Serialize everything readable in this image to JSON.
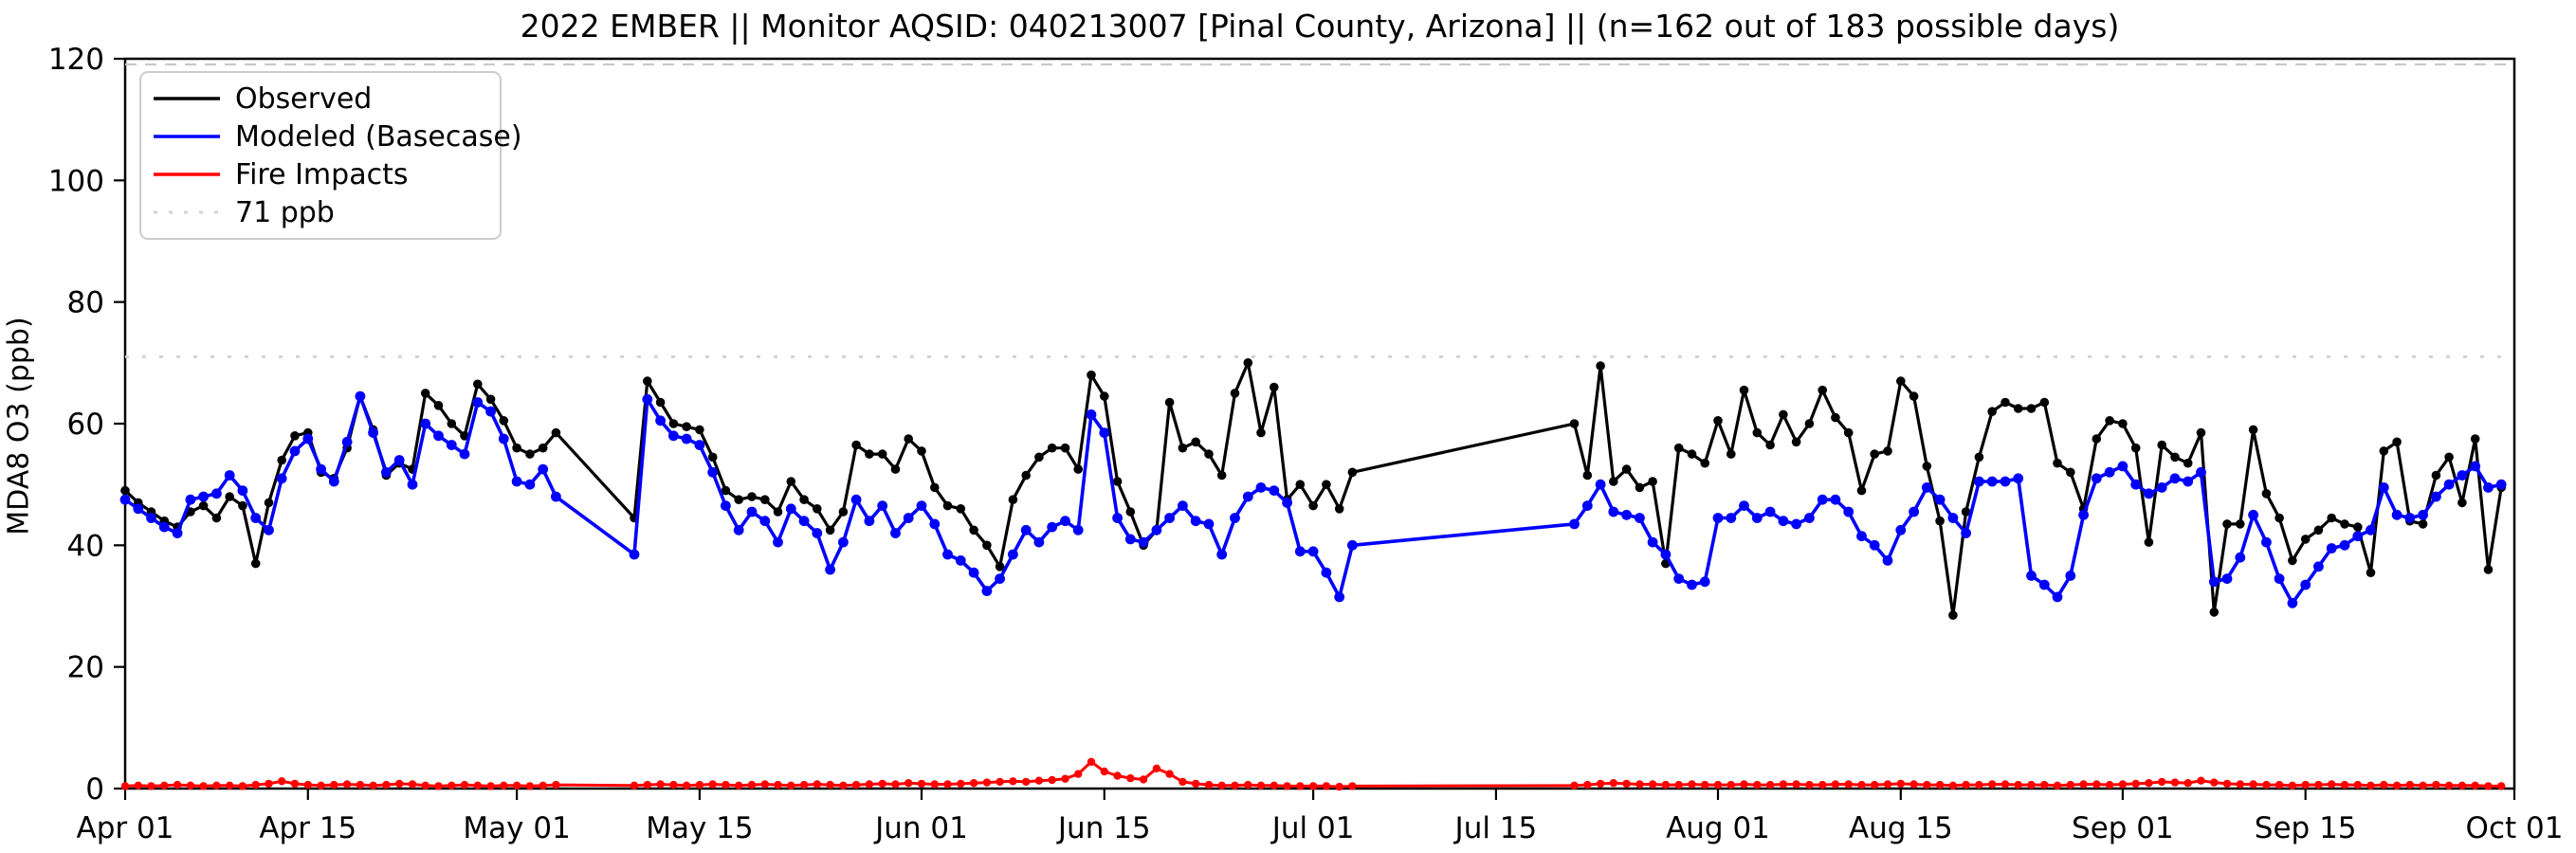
{
  "chart_data": {
    "type": "line",
    "title": "2022 EMBER || Monitor AQSID: 040213007 [Pinal County, Arizona] || (n=162 out of 183 possible days)",
    "ylabel": "MDA8 O3 (ppb)",
    "xlabel": "",
    "ylim": [
      0,
      120
    ],
    "y_ticks": [
      0,
      20,
      40,
      60,
      80,
      100,
      120
    ],
    "x_ticks": {
      "days": [
        0,
        14,
        30,
        44,
        61,
        75,
        91,
        105,
        122,
        136,
        153,
        167,
        183
      ],
      "labels": [
        "Apr 01",
        "Apr 15",
        "May 01",
        "May 15",
        "Jun 01",
        "Jun 15",
        "Jul 01",
        "Jul 15",
        "Aug 01",
        "Aug 15",
        "Sep 01",
        "Sep 15",
        "Oct 01"
      ]
    },
    "start_date": "2022-04-01",
    "n_days_shown": 162,
    "n_days_possible": 183,
    "threshold": {
      "value": 71,
      "label": "71 ppb",
      "color": "#d3d3d3"
    },
    "legend_entries": [
      "Observed",
      "Modeled (Basecase)",
      "Fire Impacts",
      "71 ppb"
    ],
    "series": [
      {
        "name": "Observed",
        "color": "#000000",
        "values": [
          49,
          47,
          45.5,
          44,
          43,
          45.5,
          46.5,
          44.5,
          48,
          46.5,
          37,
          47,
          54,
          58,
          58.5,
          52,
          51,
          56,
          64.5,
          59,
          51.5,
          53.5,
          52.5,
          65,
          63,
          60,
          58,
          66.5,
          64,
          60.5,
          56,
          55,
          56,
          58.5,
          null,
          null,
          null,
          null,
          null,
          44.5,
          67,
          63.5,
          60,
          59.5,
          59,
          54.5,
          49,
          47.5,
          48,
          47.5,
          45.5,
          50.5,
          47.5,
          46,
          42.5,
          45.5,
          56.5,
          55,
          55,
          52.5,
          57.5,
          55.5,
          49.5,
          46.5,
          46,
          42.5,
          40,
          36.5,
          47.5,
          51.5,
          54.5,
          56,
          56,
          52.5,
          68,
          64.5,
          50.5,
          45.5,
          40,
          42.5,
          63.5,
          56,
          57,
          55,
          51.5,
          65,
          70,
          58.5,
          66,
          47.5,
          50,
          46.5,
          50,
          46,
          52,
          null,
          null,
          null,
          null,
          null,
          null,
          null,
          null,
          null,
          null,
          null,
          null,
          null,
          null,
          null,
          null,
          60,
          51.5,
          69.5,
          50.5,
          52.5,
          49.5,
          50.5,
          37,
          56,
          55,
          53.5,
          60.5,
          55,
          65.5,
          58.5,
          56.5,
          61.5,
          57,
          60,
          65.5,
          61,
          58.5,
          49,
          55,
          55.5,
          67,
          64.5,
          53,
          44,
          28.5,
          45.5,
          54.5,
          62,
          63.5,
          62.5,
          62.5,
          63.5,
          53.5,
          52,
          46,
          57.5,
          60.5,
          60,
          56,
          40.5,
          56.5,
          54.5,
          53.5,
          58.5,
          29,
          43.5,
          43.5,
          59,
          48.5,
          44.5,
          37.5,
          41,
          42.5,
          44.5,
          43.5,
          43,
          35.5,
          55.5,
          57,
          44,
          43.5,
          51.5,
          54.5,
          47,
          57.5,
          36,
          49.5
        ]
      },
      {
        "name": "Modeled (Basecase)",
        "color": "#0000ff",
        "values": [
          47.5,
          46,
          44.5,
          43,
          42,
          47.5,
          48,
          48.5,
          51.5,
          49,
          44.5,
          42.5,
          51,
          55.5,
          57.5,
          52.5,
          50.5,
          57,
          64.5,
          58.5,
          52,
          54,
          50,
          60,
          58,
          56.5,
          55,
          63.5,
          62,
          57.5,
          50.5,
          50,
          52.5,
          48,
          null,
          null,
          null,
          null,
          null,
          38.5,
          64,
          60.5,
          58,
          57.5,
          56.5,
          52,
          46.5,
          42.5,
          45.5,
          44,
          40.5,
          46,
          44,
          42,
          36,
          40.5,
          47.5,
          44,
          46.5,
          42,
          44.5,
          46.5,
          43.5,
          38.5,
          37.5,
          35.5,
          32.5,
          34.5,
          38.5,
          42.5,
          40.5,
          43,
          44,
          42.5,
          61.5,
          58.5,
          44.5,
          41,
          40.5,
          42.5,
          44.5,
          46.5,
          44,
          43.5,
          38.5,
          44.5,
          48,
          49.5,
          49,
          47,
          39,
          39,
          35.5,
          31.5,
          40,
          null,
          null,
          null,
          null,
          null,
          null,
          null,
          null,
          null,
          null,
          null,
          null,
          null,
          null,
          null,
          null,
          43.5,
          46.5,
          50,
          45.5,
          45,
          44.5,
          40.5,
          38.5,
          34.5,
          33.5,
          34,
          44.5,
          44.5,
          46.5,
          44.5,
          45.5,
          44,
          43.5,
          44.5,
          47.5,
          47.5,
          45.5,
          41.5,
          40,
          37.5,
          42.5,
          45.5,
          49.5,
          47.5,
          44.5,
          42,
          50.5,
          50.5,
          50.5,
          51,
          35,
          33.5,
          31.5,
          35,
          45,
          51,
          52,
          53,
          50,
          48.5,
          49.5,
          51,
          50.5,
          52,
          34,
          34.5,
          38,
          45,
          40.5,
          34.5,
          30.5,
          33.5,
          36.5,
          39.5,
          40,
          41.5,
          42.5,
          49.5,
          45,
          44.5,
          45,
          48,
          50,
          51.5,
          53,
          49.5,
          50
        ]
      },
      {
        "name": "Fire Impacts",
        "color": "#ff0000",
        "values": [
          0.4,
          0.5,
          0.4,
          0.5,
          0.6,
          0.5,
          0.4,
          0.5,
          0.5,
          0.4,
          0.6,
          0.8,
          1.2,
          0.8,
          0.6,
          0.5,
          0.6,
          0.7,
          0.6,
          0.5,
          0.6,
          0.8,
          0.7,
          0.5,
          0.4,
          0.5,
          0.6,
          0.5,
          0.4,
          0.5,
          0.5,
          0.4,
          0.5,
          0.6,
          null,
          null,
          null,
          null,
          null,
          0.5,
          0.6,
          0.7,
          0.6,
          0.5,
          0.6,
          0.7,
          0.6,
          0.5,
          0.6,
          0.7,
          0.6,
          0.5,
          0.6,
          0.7,
          0.6,
          0.5,
          0.6,
          0.7,
          0.8,
          0.7,
          0.9,
          0.8,
          0.7,
          0.7,
          0.8,
          0.9,
          1.0,
          1.1,
          1.2,
          1.1,
          1.3,
          1.4,
          1.6,
          2.4,
          4.4,
          2.8,
          2.1,
          1.7,
          1.5,
          3.3,
          2.4,
          1.1,
          0.8,
          0.6,
          0.5,
          0.5,
          0.6,
          0.5,
          0.5,
          0.4,
          0.4,
          0.4,
          0.4,
          0.3,
          0.4,
          null,
          null,
          null,
          null,
          null,
          null,
          null,
          null,
          null,
          null,
          null,
          null,
          null,
          null,
          null,
          null,
          0.5,
          0.6,
          0.8,
          0.9,
          0.8,
          0.7,
          0.7,
          0.6,
          0.6,
          0.7,
          0.6,
          0.6,
          0.6,
          0.7,
          0.6,
          0.6,
          0.7,
          0.7,
          0.6,
          0.6,
          0.7,
          0.7,
          0.6,
          0.6,
          0.7,
          0.8,
          0.7,
          0.6,
          0.6,
          0.5,
          0.6,
          0.6,
          0.7,
          0.7,
          0.6,
          0.6,
          0.6,
          0.5,
          0.6,
          0.7,
          0.7,
          0.6,
          0.7,
          0.8,
          0.9,
          1.1,
          1.0,
          0.9,
          1.3,
          1.0,
          0.8,
          0.7,
          0.7,
          0.6,
          0.6,
          0.5,
          0.6,
          0.6,
          0.7,
          0.6,
          0.6,
          0.5,
          0.6,
          0.5,
          0.6,
          0.5,
          0.6,
          0.5,
          0.5,
          0.5,
          0.4,
          0.4
        ]
      }
    ]
  }
}
